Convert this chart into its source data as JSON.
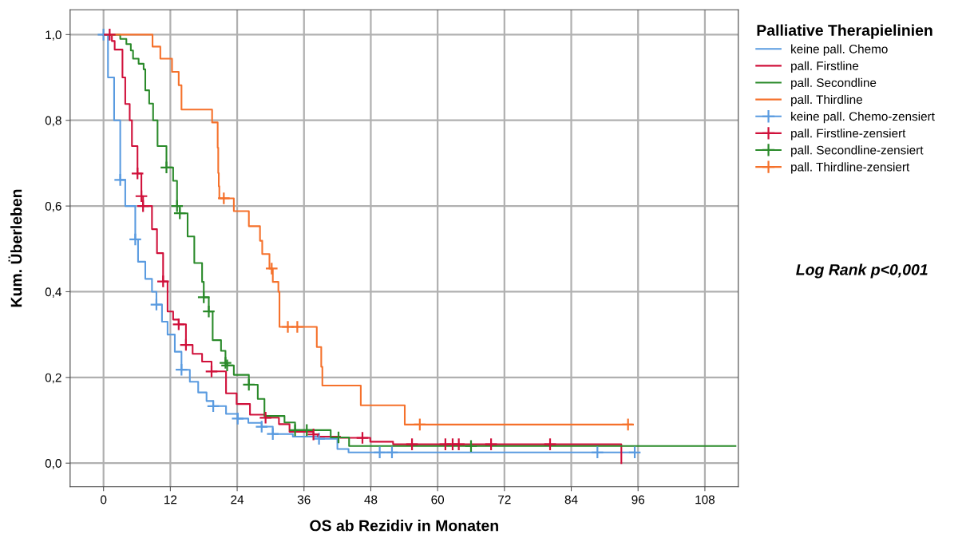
{
  "chart_data": {
    "type": "step",
    "xlabel": "OS ab Rezidiv in Monaten",
    "ylabel": "Kum. Überleben",
    "legend_title": "Palliative Therapielinien",
    "annotations": [
      "Log Rank p<0,001"
    ],
    "xlim": [
      -6,
      114
    ],
    "xticks": [
      0,
      12,
      24,
      36,
      48,
      60,
      72,
      84,
      96,
      108
    ],
    "ylim": [
      -0.055,
      1.058
    ],
    "yticks": [
      {
        "value": 0,
        "label": "0,0"
      },
      {
        "value": 0.2,
        "label": "0,2"
      },
      {
        "value": 0.4,
        "label": "0,4"
      },
      {
        "value": 0.6,
        "label": "0,6"
      },
      {
        "value": 0.8,
        "label": "0,8"
      },
      {
        "value": 1.0,
        "label": "1,0"
      }
    ],
    "grid": true,
    "legend": "right",
    "series": [
      {
        "name": "keine pall. Chemo",
        "marker": "none",
        "color": "#5a9be0",
        "x": [
          0,
          0.8,
          1.9,
          3.0,
          3.9,
          5.7,
          6.2,
          7.5,
          8.7,
          9.5,
          10.5,
          11.5,
          12.8,
          14.0,
          15.5,
          17,
          18.5,
          19.7,
          22,
          24.1,
          26,
          28.4,
          30.4,
          34,
          38.7,
          42,
          44,
          95.4
        ],
        "values": [
          1,
          0.9,
          0.8,
          0.661,
          0.6,
          0.522,
          0.47,
          0.43,
          0.4,
          0.37,
          0.33,
          0.3,
          0.26,
          0.218,
          0.19,
          0.165,
          0.145,
          0.133,
          0.115,
          0.104,
          0.094,
          0.085,
          0.068,
          0.062,
          0.057,
          0.033,
          0.025,
          0.025
        ]
      },
      {
        "name": "pall. Firstline",
        "marker": "none",
        "color": "#d0103a",
        "x": [
          0,
          1.5,
          2.0,
          3.4,
          3.9,
          4.7,
          5.1,
          6.1,
          6.8,
          7.1,
          8.7,
          9.6,
          10.7,
          11.5,
          12.5,
          13.5,
          14.8,
          16,
          17.7,
          19.4,
          22,
          23.9,
          26.3,
          29.1,
          31.5,
          33.4,
          37.7,
          38.5,
          42.5,
          47.9,
          52,
          93
        ],
        "values": [
          1,
          0.985,
          0.965,
          0.9,
          0.838,
          0.8,
          0.74,
          0.676,
          0.623,
          0.6,
          0.546,
          0.49,
          0.424,
          0.354,
          0.335,
          0.324,
          0.276,
          0.255,
          0.237,
          0.214,
          0.163,
          0.138,
          0.113,
          0.106,
          0.091,
          0.073,
          0.067,
          0.062,
          0.059,
          0.05,
          0.044,
          0.0
        ]
      },
      {
        "name": "pall. Secondline",
        "marker": "none",
        "color": "#2a8a2a",
        "x": [
          0,
          3.0,
          4.1,
          4.9,
          5.3,
          6.3,
          7.2,
          7.5,
          8.2,
          8.9,
          9.7,
          11.3,
          12.5,
          13.2,
          13.7,
          15.1,
          16.3,
          17.7,
          18.0,
          18.9,
          19.6,
          21.1,
          21.9,
          22.2,
          23.4,
          26.1,
          27.7,
          28.9,
          32.5,
          34.4,
          40.8,
          44.1,
          113.5
        ],
        "values": [
          1,
          0.99,
          0.978,
          0.963,
          0.944,
          0.932,
          0.919,
          0.87,
          0.839,
          0.8,
          0.74,
          0.69,
          0.659,
          0.6,
          0.583,
          0.529,
          0.467,
          0.423,
          0.387,
          0.354,
          0.287,
          0.262,
          0.234,
          0.228,
          0.206,
          0.183,
          0.15,
          0.11,
          0.095,
          0.077,
          0.06,
          0.04,
          0.04
        ]
      },
      {
        "name": "pall. Thirdline",
        "marker": "none",
        "color": "#f5712b",
        "x": [
          0,
          8.8,
          10.2,
          12.3,
          13.5,
          14.0,
          19.5,
          20.5,
          20.6,
          20.7,
          20.8,
          23.4,
          26.1,
          28.1,
          28.5,
          29.8,
          30.4,
          31.4,
          31.6,
          38.3,
          39.1,
          39.3,
          46.2,
          54.1,
          94.9
        ],
        "values": [
          1,
          0.972,
          0.944,
          0.913,
          0.882,
          0.825,
          0.795,
          0.736,
          0.677,
          0.646,
          0.618,
          0.588,
          0.553,
          0.519,
          0.488,
          0.454,
          0.423,
          0.4,
          0.318,
          0.271,
          0.225,
          0.181,
          0.135,
          0.09,
          0.09
        ]
      },
      {
        "name": "keine pall. Chemo-zensiert",
        "type": "scatter",
        "marker": "cross",
        "color": "#5a9be0",
        "x": [
          0,
          3.0,
          5.7,
          9.5,
          14.0,
          19.7,
          24.1,
          28.4,
          30.4,
          38.7,
          49.6,
          51.8,
          88.7,
          95.4
        ],
        "values": [
          1,
          0.661,
          0.522,
          0.37,
          0.218,
          0.133,
          0.104,
          0.085,
          0.068,
          0.057,
          0.025,
          0.025,
          0.025,
          0.025
        ]
      },
      {
        "name": "pall. Firstline-zensiert",
        "type": "scatter",
        "marker": "cross",
        "color": "#d0103a",
        "x": [
          1.1,
          6.1,
          6.8,
          7.1,
          10.7,
          13.5,
          14.8,
          19.4,
          29.1,
          37.7,
          46.5,
          55.4,
          61.4,
          62.7,
          63.8,
          69.6,
          80.2
        ],
        "values": [
          1,
          0.676,
          0.623,
          0.6,
          0.424,
          0.324,
          0.276,
          0.214,
          0.106,
          0.067,
          0.059,
          0.044,
          0.044,
          0.044,
          0.044,
          0.044,
          0.044
        ]
      },
      {
        "name": "pall. Secondline-zensiert",
        "type": "scatter",
        "marker": "cross",
        "color": "#2a8a2a",
        "x": [
          11.3,
          13.2,
          13.7,
          18.0,
          18.9,
          21.9,
          22.2,
          26.1,
          34.4,
          36.5,
          42.2,
          66.0
        ],
        "values": [
          0.69,
          0.6,
          0.583,
          0.387,
          0.354,
          0.234,
          0.228,
          0.183,
          0.077,
          0.077,
          0.06,
          0.04
        ]
      },
      {
        "name": "pall. Thirdline-zensiert",
        "type": "scatter",
        "marker": "cross",
        "color": "#f5712b",
        "x": [
          21.6,
          30.2,
          33.1,
          34.8,
          56.8,
          94.2
        ],
        "values": [
          0.618,
          0.454,
          0.318,
          0.318,
          0.09,
          0.09
        ]
      }
    ]
  }
}
